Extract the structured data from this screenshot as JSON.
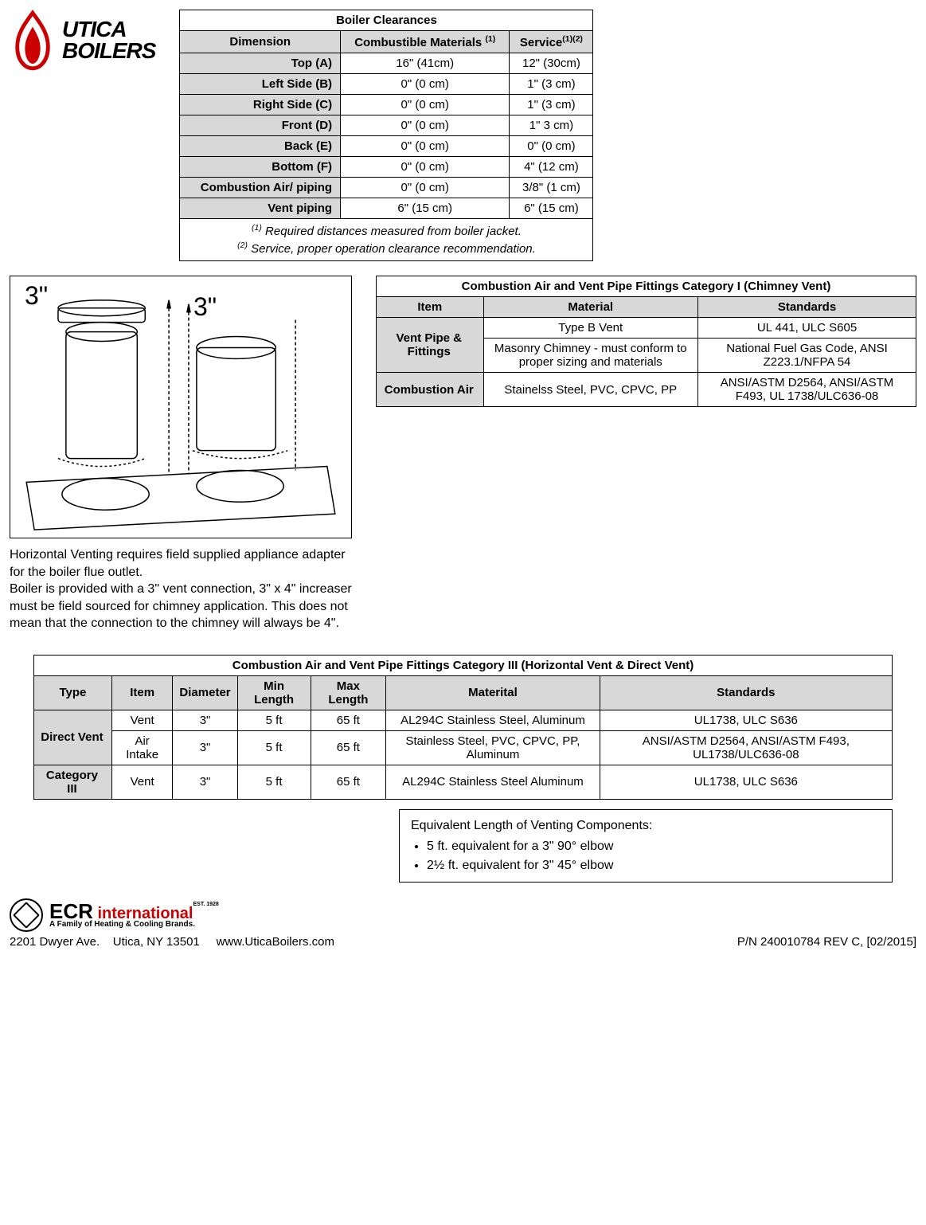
{
  "logo": {
    "line1": "UTICA",
    "line2": "BOILERS"
  },
  "clearances": {
    "title": "Boiler Clearances",
    "headers": {
      "dim": "Dimension",
      "comb": "Combustible Materials ",
      "comb_sup": "(1)",
      "svc": "Service",
      "svc_sup": "(1)(2)"
    },
    "rows": [
      {
        "label": "Top (A)",
        "comb": "16\" (41cm)",
        "svc": "12\" (30cm)"
      },
      {
        "label": "Left Side (B)",
        "comb": "0\" (0 cm)",
        "svc": "1\"  (3 cm)"
      },
      {
        "label": "Right Side (C)",
        "comb": "0\" (0 cm)",
        "svc": "1\" (3 cm)"
      },
      {
        "label": "Front (D)",
        "comb": "0\" (0 cm)",
        "svc": "1\" 3 cm)"
      },
      {
        "label": "Back (E)",
        "comb": "0\" (0 cm)",
        "svc": "0\" (0 cm)"
      },
      {
        "label": "Bottom (F)",
        "comb": "0\" (0 cm)",
        "svc": "4\" (12 cm)"
      },
      {
        "label": "Combustion Air/ piping",
        "comb": "0\" (0 cm)",
        "svc": "3/8\" (1 cm)"
      },
      {
        "label": "Vent piping",
        "comb": "6\" (15 cm)",
        "svc": "6\" (15 cm)"
      }
    ],
    "note1_sup": "(1)",
    "note1": " Required distances measured from boiler jacket.",
    "note2_sup": "(2)",
    "note2": " Service, proper operation clearance recommendation."
  },
  "diagram": {
    "left": "3\"",
    "right": "3\""
  },
  "diagram_caption": "Horizontal Venting requires field supplied appliance adapter for the boiler flue outlet.\nBoiler is provided with a 3\" vent connection, 3\" x 4\" increaser must be field sourced for chimney application. This does not mean that the connection to the chimney will always be 4\".",
  "cat1": {
    "title": "Combustion Air and Vent Pipe Fittings Category I (Chimney Vent)",
    "headers": {
      "item": "Item",
      "material": "Material",
      "standards": "Standards"
    },
    "r1": {
      "item": "Vent Pipe & Fittings",
      "m": "Type B Vent",
      "s": "UL 441, ULC S605"
    },
    "r2": {
      "m": "Masonry Chimney - must conform to proper sizing and materials",
      "s": "National Fuel Gas Code, ANSI Z223.1/NFPA 54"
    },
    "r3": {
      "item": "Combustion Air",
      "m": "Stainelss Steel, PVC, CPVC, PP",
      "s": "ANSI/ASTM D2564, ANSI/ASTM F493, UL 1738/ULC636-08"
    }
  },
  "cat3": {
    "title": "Combustion Air and Vent Pipe Fittings Category III (Horizontal Vent & Direct Vent)",
    "headers": {
      "type": "Type",
      "item": "Item",
      "dia": "Diameter",
      "min": "Min Length",
      "max": "Max Length",
      "mat": "Materital",
      "std": "Standards"
    },
    "rows": [
      {
        "type": "Direct Vent",
        "item": "Vent",
        "dia": "3\"",
        "min": "5 ft",
        "max": "65 ft",
        "mat": "AL294C Stainless Steel, Aluminum",
        "std": "UL1738, ULC S636"
      },
      {
        "type": "",
        "item": "Air Intake",
        "dia": "3\"",
        "min": "5 ft",
        "max": "65 ft",
        "mat": "Stainless Steel, PVC, CPVC, PP, Aluminum",
        "std": "ANSI/ASTM D2564, ANSI/ASTM F493, UL1738/ULC636-08"
      },
      {
        "type": "Category III",
        "item": "Vent",
        "dia": "3\"",
        "min": "5 ft",
        "max": "65 ft",
        "mat": "AL294C Stainless Steel Aluminum",
        "std": "UL1738, ULC S636"
      }
    ]
  },
  "equiv": {
    "title": "Equivalent Length of Venting Components:",
    "b1": "5 ft. equivalent for a 3\" 90° elbow",
    "b2": "2½ ft. equivalent for 3\" 45° elbow"
  },
  "ecr": {
    "name": "ECR",
    "intl": " international",
    "est": "EST. 1928",
    "tag": "A Family of Heating & Cooling Brands."
  },
  "footer": {
    "addr": "2201 Dwyer Ave.    Utica, NY 13501     www.UticaBoilers.com",
    "pn": "P/N 240010784 REV C, [02/2015]"
  }
}
